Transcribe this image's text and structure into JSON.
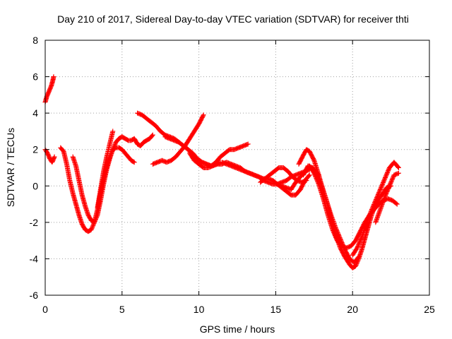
{
  "chart_data": {
    "type": "scatter",
    "title": "Day 210 of 2017, Sidereal Day-to-day VTEC variation (SDTVAR) for receiver thti",
    "xlabel": "GPS time / hours",
    "ylabel": "SDTVAR / TECUs",
    "xlim": [
      0,
      25
    ],
    "ylim": [
      -6,
      8
    ],
    "xticks": [
      0,
      5,
      10,
      15,
      20,
      25
    ],
    "yticks": [
      -6,
      -4,
      -2,
      0,
      2,
      4,
      6,
      8
    ],
    "grid": true,
    "legend": "none",
    "marker": "+",
    "color": "#ff0000",
    "series": [
      {
        "x": [
          0.0,
          0.1,
          0.2,
          0.3,
          0.4,
          0.5,
          0.55
        ],
        "y": [
          4.6,
          4.9,
          5.1,
          5.3,
          5.5,
          5.8,
          6.0
        ]
      },
      {
        "x": [
          0.0,
          0.15,
          0.3,
          0.45,
          0.6
        ],
        "y": [
          2.0,
          1.8,
          1.5,
          1.3,
          1.6
        ]
      },
      {
        "x": [
          1.0,
          1.2,
          1.4,
          1.6,
          1.8,
          2.0,
          2.2,
          2.4,
          2.6,
          2.8,
          3.0,
          3.2,
          3.4,
          3.6,
          3.8,
          4.0,
          4.2,
          4.4,
          4.6,
          4.8,
          5.0,
          5.2,
          5.4,
          5.6,
          5.8
        ],
        "y": [
          2.1,
          1.9,
          1.2,
          0.3,
          -0.4,
          -1.0,
          -1.6,
          -2.1,
          -2.4,
          -2.5,
          -2.4,
          -2.0,
          -1.3,
          -0.4,
          0.4,
          1.1,
          1.6,
          2.0,
          2.1,
          2.1,
          2.0,
          1.8,
          1.6,
          1.4,
          1.3
        ]
      },
      {
        "x": [
          1.8,
          2.0,
          2.2,
          2.4,
          2.6,
          2.8,
          3.0,
          3.2,
          3.4,
          3.6,
          3.8,
          4.0,
          4.2,
          4.4,
          4.6,
          4.8,
          5.0,
          5.2,
          5.4,
          5.6,
          5.8,
          6.0,
          6.2,
          6.4,
          6.6,
          6.8,
          7.0
        ],
        "y": [
          1.6,
          1.1,
          0.3,
          -0.5,
          -1.1,
          -1.6,
          -1.9,
          -2.0,
          -1.6,
          -0.8,
          0.1,
          0.9,
          1.5,
          2.0,
          2.4,
          2.6,
          2.7,
          2.6,
          2.5,
          2.5,
          2.6,
          2.3,
          2.2,
          2.4,
          2.5,
          2.6,
          2.8
        ]
      },
      {
        "x": [
          3.4,
          3.6,
          3.8,
          4.0,
          4.2,
          4.4
        ],
        "y": [
          -1.2,
          -0.2,
          0.8,
          1.6,
          2.3,
          3.0
        ]
      },
      {
        "x": [
          6.0,
          6.3,
          6.6,
          6.9,
          7.2,
          7.5,
          7.8,
          8.1,
          8.4,
          8.7,
          9.0,
          9.3,
          9.6,
          9.9,
          10.2,
          10.5,
          10.8,
          11.1,
          11.4
        ],
        "y": [
          4.0,
          3.9,
          3.7,
          3.5,
          3.3,
          3.0,
          2.8,
          2.7,
          2.6,
          2.4,
          2.2,
          2.0,
          1.8,
          1.5,
          1.3,
          1.2,
          1.1,
          1.2,
          1.3
        ]
      },
      {
        "x": [
          7.0,
          7.3,
          7.6,
          7.9,
          8.2,
          8.5,
          8.8,
          9.1,
          9.4,
          9.7,
          10.0,
          10.3
        ],
        "y": [
          1.2,
          1.3,
          1.4,
          1.3,
          1.4,
          1.6,
          1.9,
          2.2,
          2.6,
          3.0,
          3.4,
          3.9
        ]
      },
      {
        "x": [
          7.8,
          8.1,
          8.4,
          8.7,
          9.0,
          9.3,
          9.6,
          9.9,
          10.2,
          10.5,
          10.8,
          11.1,
          11.4,
          11.7,
          12.0,
          12.3,
          12.6,
          12.9,
          13.2
        ],
        "y": [
          2.7,
          2.6,
          2.5,
          2.4,
          2.2,
          2.0,
          1.7,
          1.5,
          1.3,
          1.2,
          1.1,
          1.3,
          1.6,
          1.8,
          2.0,
          2.0,
          2.1,
          2.2,
          2.3
        ]
      },
      {
        "x": [
          9.4,
          9.7,
          10.0,
          10.3,
          10.6,
          10.9,
          11.2,
          11.5,
          11.8,
          12.1,
          12.4,
          12.7,
          13.0,
          13.3,
          13.6,
          13.9,
          14.2,
          14.5,
          14.8,
          15.1,
          15.4,
          15.7,
          16.0,
          16.3,
          16.6,
          16.9,
          17.2
        ],
        "y": [
          1.8,
          1.4,
          1.2,
          1.0,
          1.0,
          1.1,
          1.2,
          1.2,
          1.3,
          1.2,
          1.1,
          1.0,
          0.8,
          0.7,
          0.6,
          0.5,
          0.3,
          0.2,
          0.1,
          0.1,
          0.2,
          0.3,
          0.5,
          0.6,
          0.7,
          0.8,
          0.9
        ]
      },
      {
        "x": [
          11.5,
          11.8,
          12.1,
          12.4,
          12.7,
          13.0,
          13.3,
          13.6,
          13.9,
          14.2,
          14.5,
          14.8,
          15.1,
          15.4,
          15.7,
          16.0,
          16.3,
          16.6,
          16.9,
          17.2,
          17.5,
          17.8
        ],
        "y": [
          1.3,
          1.2,
          1.1,
          1.0,
          0.9,
          0.8,
          0.7,
          0.6,
          0.5,
          0.4,
          0.4,
          0.3,
          0.1,
          0.0,
          -0.1,
          -0.2,
          0.2,
          0.5,
          0.8,
          1.0,
          0.9,
          0.6
        ]
      },
      {
        "x": [
          14.0,
          14.3,
          14.6,
          14.9,
          15.2,
          15.5,
          15.8,
          16.1,
          16.4,
          16.7,
          17.0
        ],
        "y": [
          0.2,
          0.4,
          0.6,
          0.8,
          1.0,
          1.0,
          0.8,
          0.5,
          0.3,
          0.2,
          0.3
        ]
      },
      {
        "x": [
          14.8,
          15.1,
          15.4,
          15.7,
          16.0,
          16.3,
          16.6,
          16.9,
          17.2
        ],
        "y": [
          0.3,
          0.1,
          -0.1,
          -0.3,
          -0.5,
          -0.5,
          -0.2,
          0.3,
          0.6
        ]
      },
      {
        "x": [
          16.5,
          16.8,
          17.0,
          17.2,
          17.5,
          17.8,
          18.0,
          18.3,
          18.6,
          18.9,
          19.2,
          19.5,
          19.8,
          20.1,
          20.4
        ],
        "y": [
          1.2,
          1.7,
          2.0,
          1.9,
          1.4,
          0.6,
          0.0,
          -0.8,
          -1.6,
          -2.3,
          -2.9,
          -3.5,
          -4.0,
          -4.2,
          -3.9
        ]
      },
      {
        "x": [
          16.8,
          17.1,
          17.4,
          17.7,
          18.0,
          18.3,
          18.6,
          18.9,
          19.2,
          19.5,
          19.8,
          20.0,
          20.2,
          20.4,
          20.6,
          20.8,
          21.0,
          21.2,
          21.4,
          21.6,
          21.8,
          22.0,
          22.2,
          22.5
        ],
        "y": [
          0.6,
          1.1,
          1.0,
          0.6,
          0.0,
          -0.8,
          -1.8,
          -2.7,
          -3.4,
          -3.9,
          -4.3,
          -4.5,
          -4.4,
          -4.0,
          -3.5,
          -2.9,
          -2.3,
          -1.7,
          -1.2,
          -0.9,
          -0.6,
          -0.4,
          -0.1,
          0.0
        ]
      },
      {
        "x": [
          17.2,
          17.5,
          17.8,
          18.1,
          18.4,
          18.7,
          19.0,
          19.3,
          19.6,
          19.9,
          20.2,
          20.5,
          20.8,
          21.1,
          21.4,
          21.7,
          22.0,
          22.3,
          22.6,
          22.9
        ],
        "y": [
          1.1,
          0.7,
          0.1,
          -0.7,
          -1.6,
          -2.4,
          -3.0,
          -3.3,
          -3.4,
          -3.3,
          -3.0,
          -2.5,
          -2.0,
          -1.6,
          -1.3,
          -1.0,
          -0.8,
          -0.7,
          -0.8,
          -1.0
        ]
      },
      {
        "x": [
          20.0,
          20.3,
          20.6,
          20.9,
          21.2,
          21.5,
          21.8,
          22.1,
          22.4,
          22.7,
          23.0
        ],
        "y": [
          -3.8,
          -3.4,
          -2.8,
          -2.1,
          -1.4,
          -0.8,
          -0.2,
          0.4,
          1.0,
          1.3,
          1.0
        ]
      },
      {
        "x": [
          21.5,
          21.8,
          22.1,
          22.4,
          22.7,
          23.0
        ],
        "y": [
          -2.0,
          -1.3,
          -0.6,
          0.0,
          0.6,
          0.7
        ]
      }
    ]
  }
}
